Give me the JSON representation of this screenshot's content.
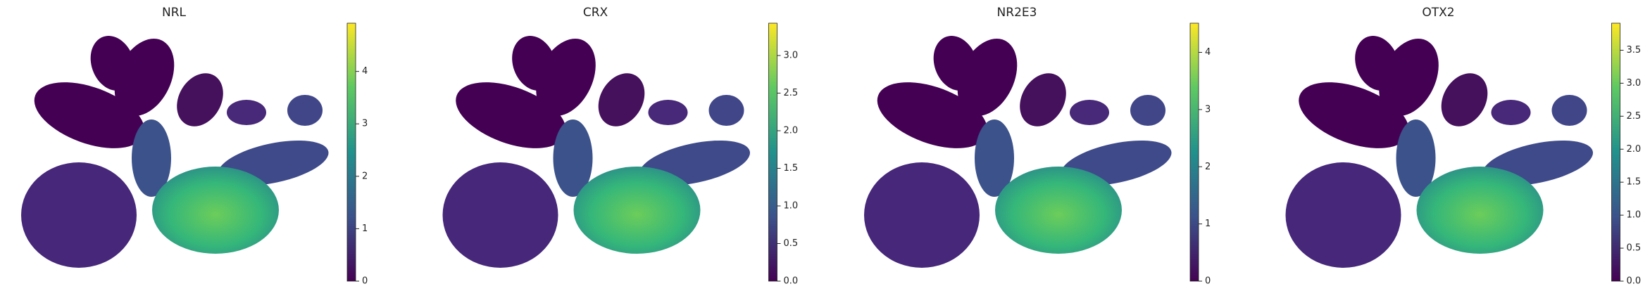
{
  "chart_data": [
    {
      "type": "scatter",
      "title": "NRL",
      "colorbar": {
        "lim": [
          0,
          4.92
        ],
        "ticks": [
          0,
          1,
          2,
          3,
          4
        ]
      }
    },
    {
      "type": "scatter",
      "title": "CRX",
      "colorbar": {
        "lim": [
          0,
          3.43
        ],
        "ticks": [
          {
            "value": 0,
            "label": "0.0"
          },
          {
            "value": 0.5,
            "label": "0.5"
          },
          {
            "value": 1,
            "label": "1.0"
          },
          {
            "value": 1.5,
            "label": "1.5"
          },
          {
            "value": 2,
            "label": "2.0"
          },
          {
            "value": 2.5,
            "label": "2.5"
          },
          {
            "value": 3,
            "label": "3.0"
          }
        ]
      }
    },
    {
      "type": "scatter",
      "title": "NR2E3",
      "colorbar": {
        "lim": [
          0,
          4.51
        ],
        "ticks": [
          0,
          1,
          2,
          3,
          4
        ]
      }
    },
    {
      "type": "scatter",
      "title": "OTX2",
      "colorbar": {
        "lim": [
          0,
          3.91
        ],
        "ticks": [
          {
            "value": 0,
            "label": "0.0"
          },
          {
            "value": 0.5,
            "label": "0.5"
          },
          {
            "value": 1,
            "label": "1.0"
          },
          {
            "value": 1.5,
            "label": "1.5"
          },
          {
            "value": 2,
            "label": "2.0"
          },
          {
            "value": 2.5,
            "label": "2.5"
          },
          {
            "value": 3,
            "label": "3.0"
          },
          {
            "value": 3.5,
            "label": "3.5"
          }
        ]
      }
    }
  ]
}
